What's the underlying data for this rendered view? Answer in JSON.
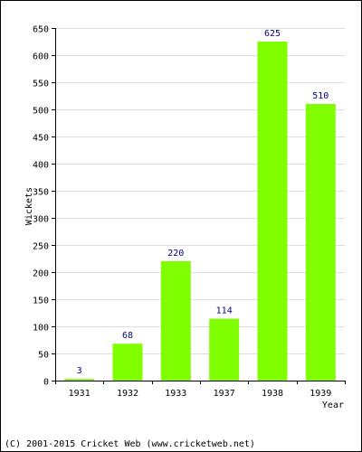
{
  "chart_data": {
    "type": "bar",
    "title": "",
    "xlabel": "Year",
    "ylabel": "Wickets",
    "categories": [
      "1931",
      "1932",
      "1933",
      "1937",
      "1938",
      "1939"
    ],
    "series": [
      {
        "values": [
          3,
          68,
          220,
          114,
          625,
          510
        ]
      }
    ],
    "ylim": [
      0,
      650
    ],
    "yticks": [
      0,
      50,
      100,
      150,
      200,
      250,
      300,
      350,
      400,
      450,
      500,
      550,
      600,
      650
    ],
    "grid": true,
    "data_labels": true,
    "colors": {
      "bar": "#80ff00",
      "data_label": "#000080",
      "grid": "#dddddd",
      "axis": "#000000",
      "background": "#ffffff"
    }
  },
  "footer": {
    "copyright": "(C) 2001-2015 Cricket Web (www.cricketweb.net)"
  }
}
